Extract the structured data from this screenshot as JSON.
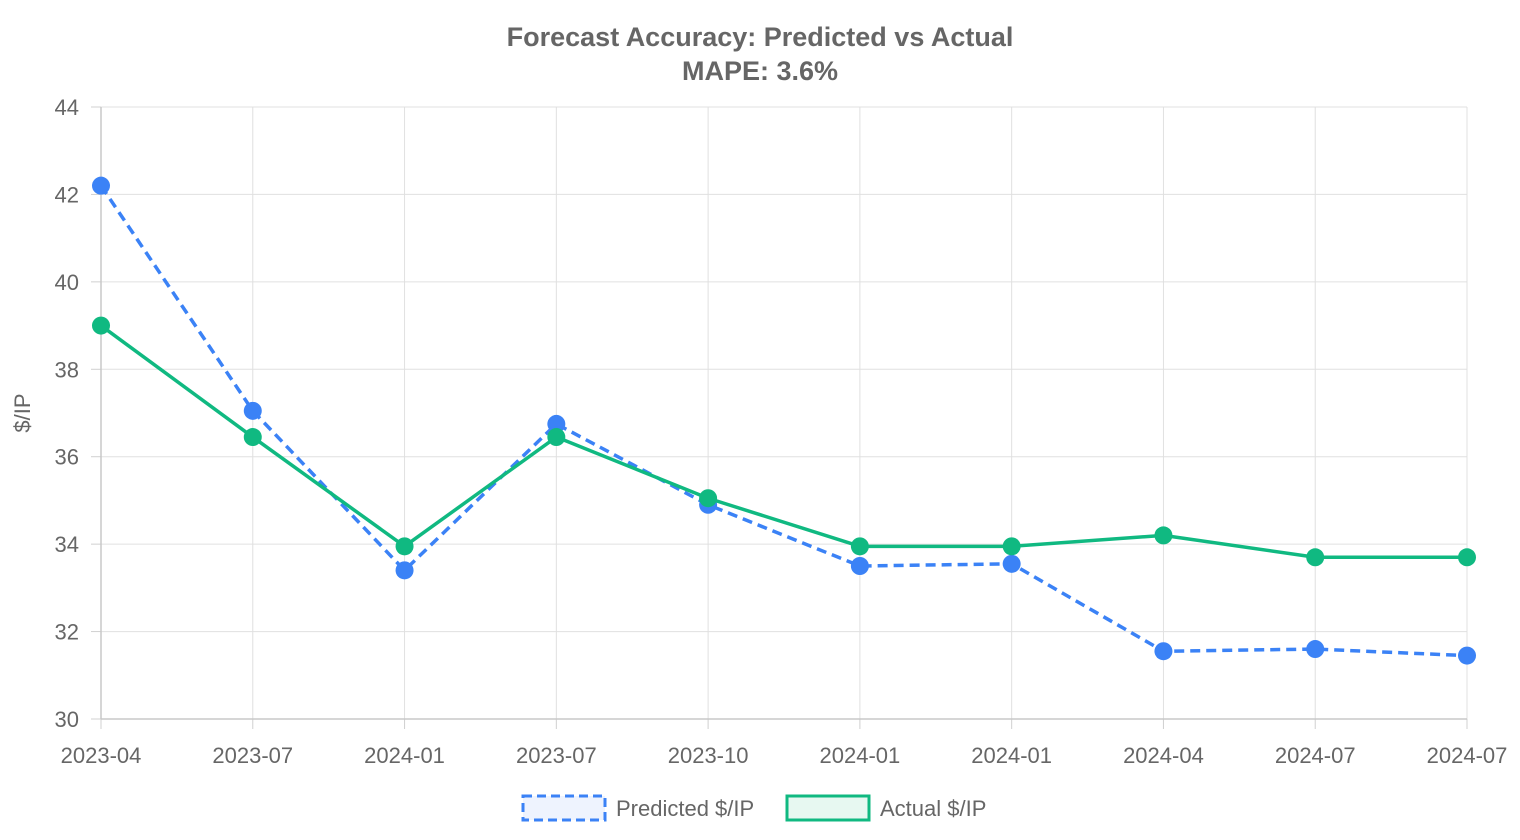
{
  "chart_data": {
    "type": "line",
    "title": "Forecast Accuracy: Predicted vs Actual",
    "subtitle": "MAPE: 3.6%",
    "xlabel": "",
    "ylabel": "$/IP",
    "categories": [
      "2023-04",
      "2023-07",
      "2024-01",
      "2023-07",
      "2023-10",
      "2024-01",
      "2024-01",
      "2024-04",
      "2024-07",
      "2024-07"
    ],
    "ylim": [
      30,
      44
    ],
    "yticks": [
      30,
      32,
      34,
      36,
      38,
      40,
      42,
      44
    ],
    "grid": true,
    "legend_position": "bottom",
    "series": [
      {
        "name": "Predicted $/IP",
        "values": [
          42.2,
          37.05,
          33.4,
          36.75,
          34.9,
          33.5,
          33.55,
          31.55,
          31.6,
          31.45
        ],
        "color": "#3b82f6",
        "fill": "#eef3fe",
        "dashed": true
      },
      {
        "name": "Actual $/IP",
        "values": [
          39.0,
          36.45,
          33.95,
          36.45,
          35.05,
          33.95,
          33.95,
          34.2,
          33.7,
          33.7
        ],
        "color": "#10b981",
        "fill": "#e7f8f1",
        "dashed": false
      }
    ]
  }
}
